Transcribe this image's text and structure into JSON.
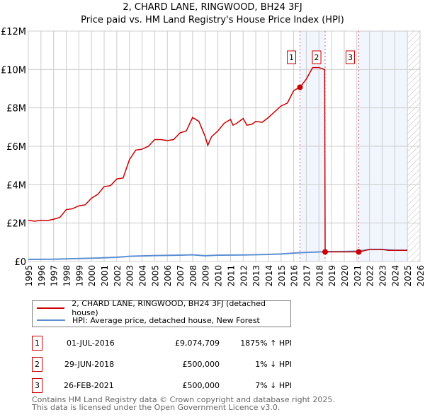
{
  "chart_data": {
    "type": "line",
    "title": "2, CHARD LANE, RINGWOOD, BH24 3FJ",
    "subtitle": "Price paid vs. HM Land Registry's House Price Index (HPI)",
    "xlim": [
      1995,
      2026
    ],
    "ylim": [
      0,
      12000000
    ],
    "yticks": [
      {
        "v": 0,
        "label": "£0"
      },
      {
        "v": 2000000,
        "label": "£2M"
      },
      {
        "v": 4000000,
        "label": "£4M"
      },
      {
        "v": 6000000,
        "label": "£6M"
      },
      {
        "v": 8000000,
        "label": "£8M"
      },
      {
        "v": 10000000,
        "label": "£10M"
      },
      {
        "v": 12000000,
        "label": "£12M"
      }
    ],
    "xticks": [
      "1995",
      "1996",
      "1997",
      "1998",
      "1999",
      "2000",
      "2001",
      "2002",
      "2003",
      "2004",
      "2005",
      "2006",
      "2007",
      "2008",
      "2009",
      "2010",
      "2011",
      "2012",
      "2013",
      "2014",
      "2015",
      "2016",
      "2017",
      "2018",
      "2019",
      "2020",
      "2021",
      "2022",
      "2023",
      "2024",
      "2025",
      "2026"
    ],
    "grid": true,
    "shaded_ranges": [
      [
        2016.5,
        2018.49
      ],
      [
        2021.15,
        2025
      ]
    ],
    "hatched_from": 2025,
    "series": [
      {
        "name": "2, CHARD LANE, RINGWOOD, BH24 3FJ (detached house)",
        "color": "#cc0000",
        "x": [
          1995,
          1995.5,
          1996,
          1996.5,
          1997,
          1997.5,
          1998,
          1998.5,
          1999,
          1999.5,
          2000,
          2000.5,
          2001,
          2001.5,
          2002,
          2002.5,
          2003,
          2003.5,
          2004,
          2004.5,
          2005,
          2005.5,
          2006,
          2006.5,
          2007,
          2007.5,
          2008,
          2008.5,
          2009,
          2009.2,
          2009.5,
          2010,
          2010.5,
          2011,
          2011.2,
          2011.5,
          2012,
          2012.3,
          2012.7,
          2013,
          2013.5,
          2014,
          2014.5,
          2015,
          2015.5,
          2016,
          2016.5,
          2017,
          2017.5,
          2018,
          2018.45,
          2018.49,
          2019,
          2020,
          2021.15,
          2021.5,
          2022,
          2023,
          2023.5,
          2025
        ],
        "y": [
          2150000,
          2100000,
          2150000,
          2130000,
          2200000,
          2300000,
          2700000,
          2750000,
          2900000,
          2950000,
          3300000,
          3500000,
          3900000,
          3950000,
          4300000,
          4350000,
          5300000,
          5800000,
          5850000,
          6000000,
          6350000,
          6350000,
          6300000,
          6350000,
          6700000,
          6800000,
          7500000,
          7300000,
          6500000,
          6050000,
          6500000,
          6800000,
          7200000,
          7400000,
          7100000,
          7200000,
          7450000,
          7100000,
          7150000,
          7300000,
          7250000,
          7500000,
          7800000,
          8100000,
          8250000,
          8900000,
          9074709,
          9500000,
          10100000,
          10100000,
          10000000,
          500000,
          500000,
          500000,
          500000,
          550000,
          630000,
          630000,
          580000,
          580000
        ]
      },
      {
        "name": "HPI: Average price, detached house, New Forest",
        "color": "#5b8fd4",
        "x": [
          1995,
          1997,
          1998,
          2000,
          2002,
          2003,
          2005,
          2007,
          2008,
          2009,
          2010,
          2012,
          2014,
          2015,
          2016.5,
          2018.5,
          2020,
          2021.2,
          2022,
          2023,
          2024,
          2025
        ],
        "y": [
          110000,
          120000,
          140000,
          170000,
          220000,
          270000,
          310000,
          330000,
          350000,
          300000,
          330000,
          340000,
          370000,
          390000,
          460000,
          510000,
          520000,
          540000,
          630000,
          630000,
          590000,
          590000
        ]
      }
    ],
    "sales": [
      {
        "id": "1",
        "x": 2016.5,
        "y": 9074709,
        "date": "01-JUL-2016",
        "price": "£9,074,709",
        "hpi": "1875% ↑ HPI"
      },
      {
        "id": "2",
        "x": 2018.49,
        "y": 500000,
        "date": "29-JUN-2018",
        "price": "£500,000",
        "hpi": "1% ↓ HPI"
      },
      {
        "id": "3",
        "x": 2021.15,
        "y": 500000,
        "date": "26-FEB-2021",
        "price": "£500,000",
        "hpi": "7% ↓ HPI"
      }
    ]
  },
  "footer": {
    "line1": "Contains HM Land Registry data © Crown copyright and database right 2025.",
    "line2": "This data is licensed under the Open Government Licence v3.0."
  }
}
